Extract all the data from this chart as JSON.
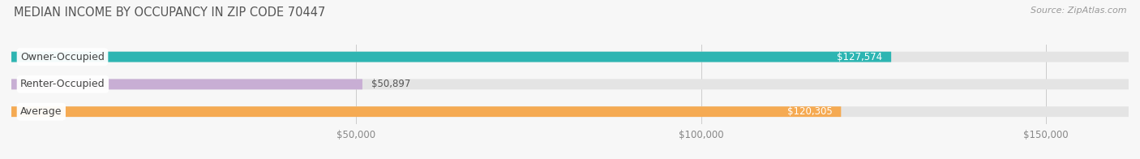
{
  "title": "MEDIAN INCOME BY OCCUPANCY IN ZIP CODE 70447",
  "source": "Source: ZipAtlas.com",
  "categories": [
    "Owner-Occupied",
    "Renter-Occupied",
    "Average"
  ],
  "values": [
    127574,
    50897,
    120305
  ],
  "bar_colors": [
    "#2db5b2",
    "#c8aed4",
    "#f5aa52"
  ],
  "bar_background": "#e4e4e4",
  "xmax": 162000,
  "xticks": [
    50000,
    100000,
    150000
  ],
  "xtick_labels": [
    "$50,000",
    "$100,000",
    "$150,000"
  ],
  "value_labels": [
    "$127,574",
    "$50,897",
    "$120,305"
  ],
  "value_inside": [
    true,
    false,
    true
  ],
  "figsize": [
    14.06,
    1.96
  ],
  "dpi": 100,
  "bg_color": "#f7f7f7",
  "title_color": "#555555",
  "source_color": "#999999",
  "tick_color": "#888888"
}
